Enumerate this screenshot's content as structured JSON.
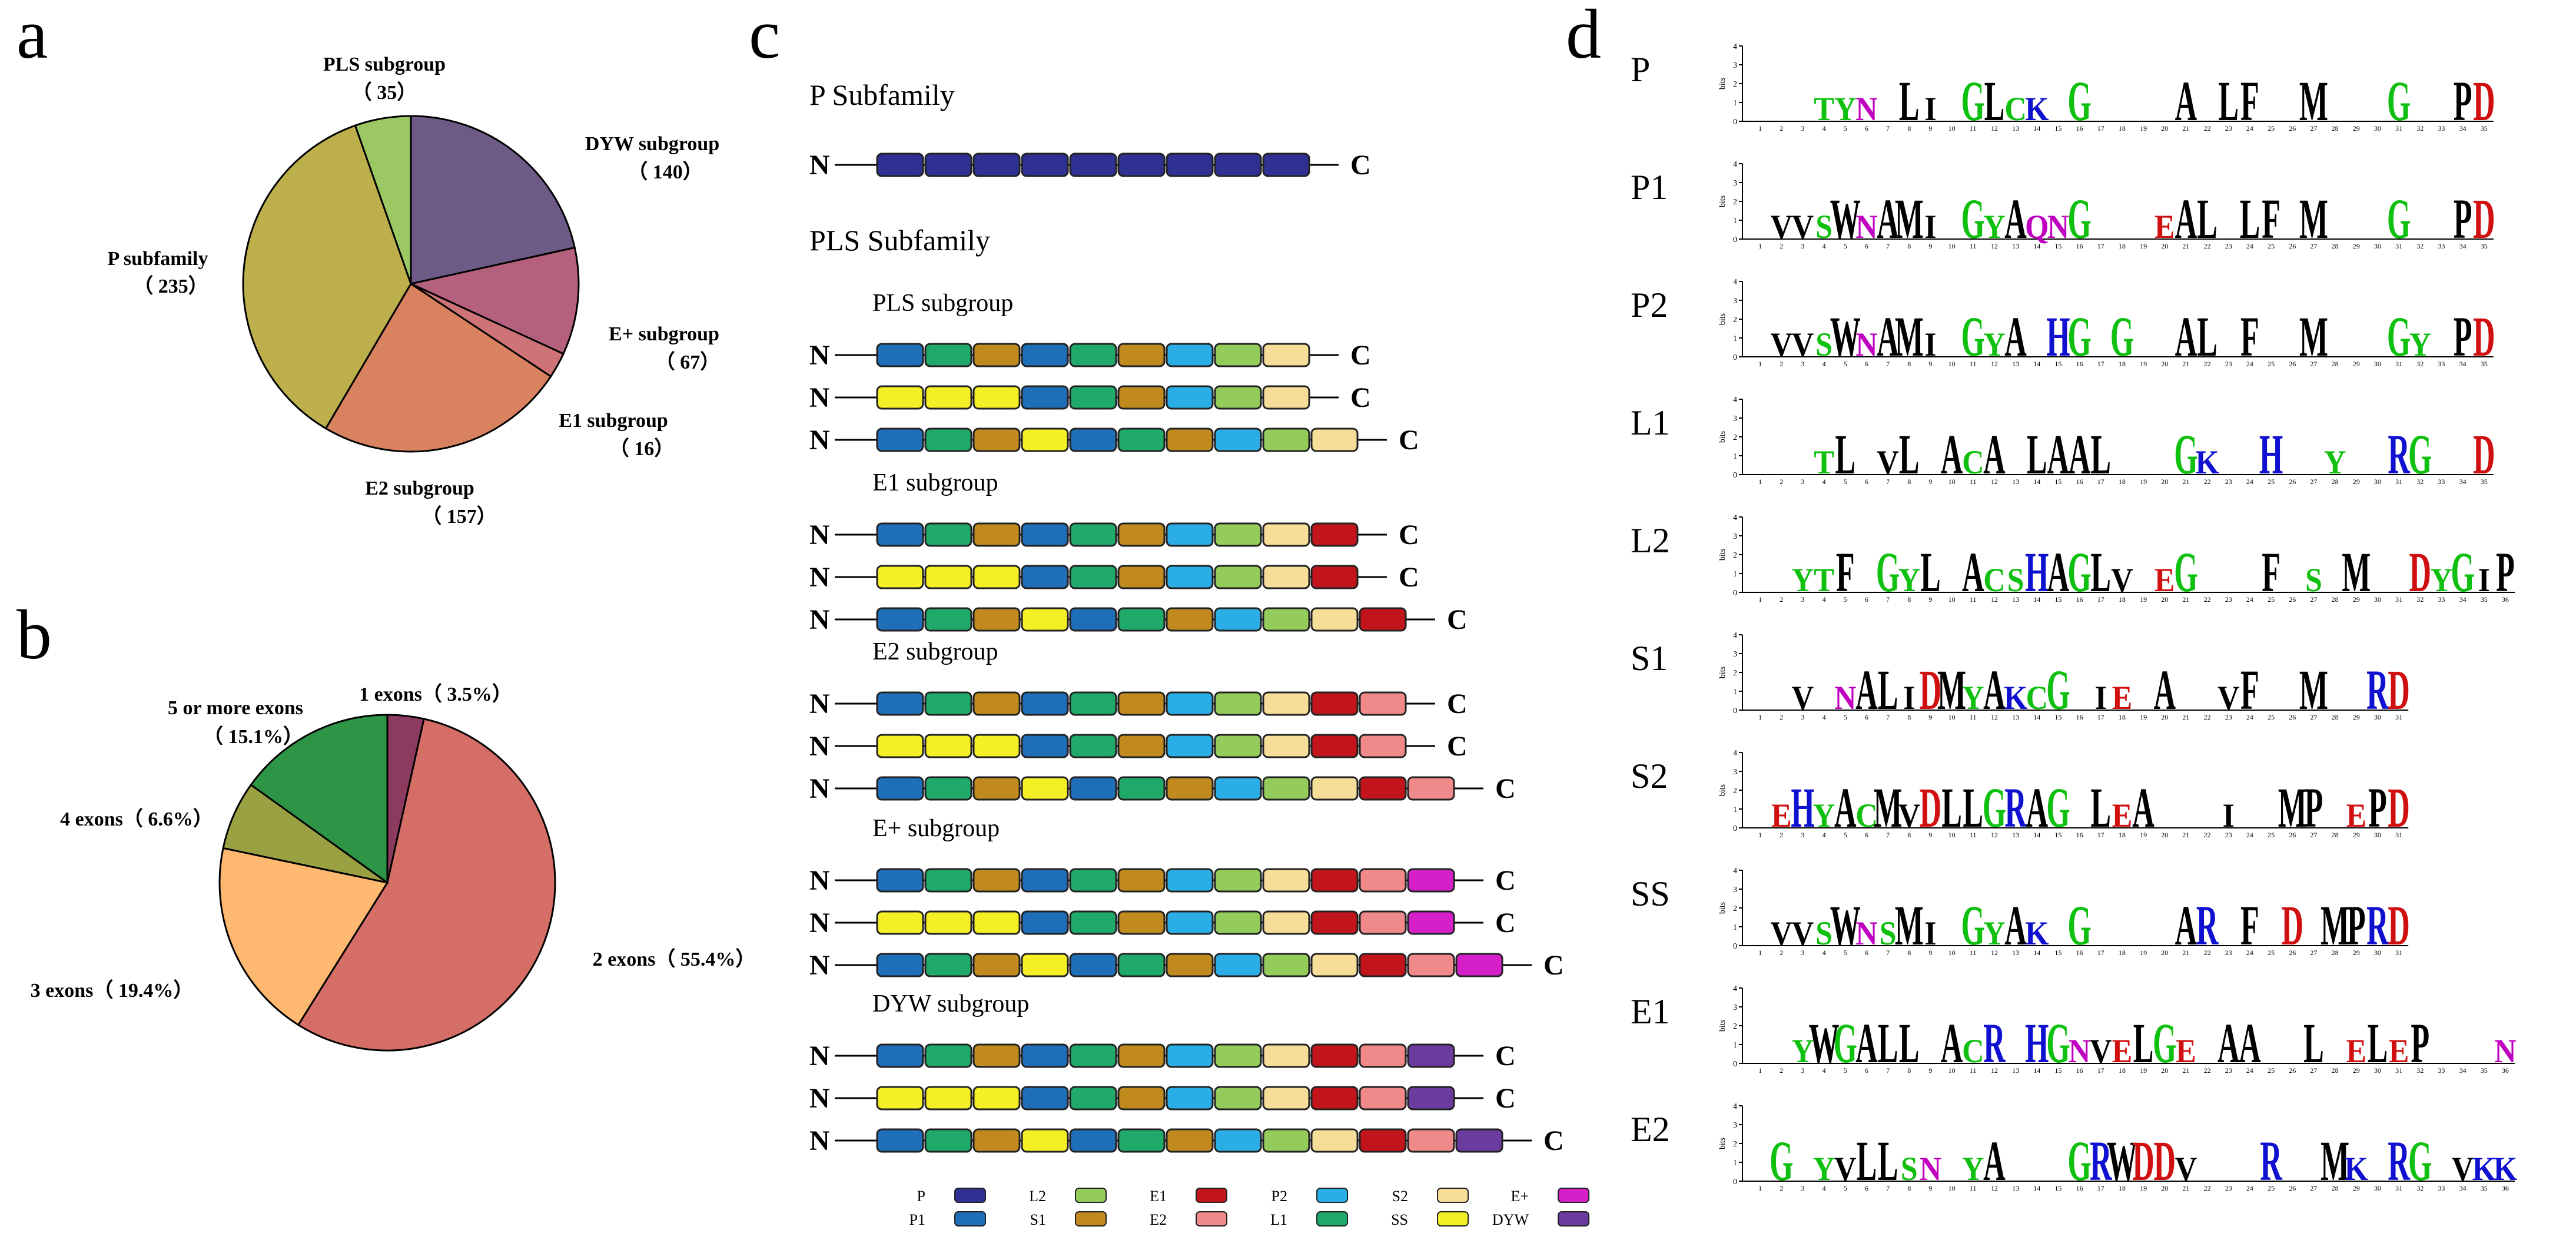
{
  "panels": {
    "a": "a",
    "b": "b",
    "c": "c",
    "d": "d"
  },
  "colors": {
    "P": "#2E3192",
    "P1": "#1F6FB8",
    "P2": "#2BAEE6",
    "L1": "#1FAA6A",
    "L2": "#93CC5A",
    "S1": "#C08A1E",
    "S2": "#F7DE98",
    "SS": "#F5EF26",
    "E1": "#C1141B",
    "E2": "#F08A8A",
    "E+": "#D51FC9",
    "DYW": "#6B3BA0"
  },
  "chart_data": [
    {
      "type": "pie",
      "panel": "a",
      "slices": [
        {
          "name": "DYW subgroup",
          "value": 140,
          "value_label": "（ 140）",
          "color": "#6E5A86"
        },
        {
          "name": "E+ subgroup",
          "value": 67,
          "value_label": "（ 67）",
          "color": "#B5607C"
        },
        {
          "name": "E1 subgroup",
          "value": 16,
          "value_label": "（ 16）",
          "color": "#CE7478"
        },
        {
          "name": "E2 subgroup",
          "value": 157,
          "value_label": "（ 157）",
          "color": "#D9825F"
        },
        {
          "name": "P subfamily",
          "value": 235,
          "value_label": "（ 235）",
          "color": "#BDB04C"
        },
        {
          "name": "PLS subgroup",
          "value": 35,
          "value_label": "（ 35）",
          "color": "#9BC863"
        }
      ]
    },
    {
      "type": "pie",
      "panel": "b",
      "slices": [
        {
          "name": "1 exons",
          "value": 3.5,
          "label": "1 exons（ 3.5%）",
          "color": "#8C3A5E"
        },
        {
          "name": "2 exons",
          "value": 55.4,
          "label": "2 exons（ 55.4%）",
          "color": "#D56E66"
        },
        {
          "name": "3 exons",
          "value": 19.4,
          "label": "3 exons（ 19.4%）",
          "color": "#FFB870"
        },
        {
          "name": "4 exons",
          "value": 6.6,
          "label": "4 exons（ 6.6%）",
          "color": "#9AA143"
        },
        {
          "name": "5 or more exons",
          "value": 15.1,
          "label": "5 or more exons",
          "label2": "（ 15.1%）",
          "color": "#2E9446"
        }
      ]
    },
    {
      "type": "diagram",
      "panel": "c",
      "p_title": "P Subfamily",
      "pls_title": "PLS Subfamily",
      "n_label": "N",
      "c_label": "C",
      "p_row": [
        "P",
        "P",
        "P",
        "P",
        "P",
        "P",
        "P",
        "P",
        "P"
      ],
      "groups": [
        {
          "name": "PLS subgroup",
          "rows": [
            [
              "P1",
              "L1",
              "S1",
              "P1",
              "L1",
              "S1",
              "P2",
              "L2",
              "S2"
            ],
            [
              "SS",
              "SS",
              "SS",
              "P1",
              "L1",
              "S1",
              "P2",
              "L2",
              "S2"
            ],
            [
              "P1",
              "L1",
              "S1",
              "SS",
              "P1",
              "L1",
              "S1",
              "P2",
              "L2",
              "S2"
            ]
          ]
        },
        {
          "name": "E1 subgroup",
          "rows": [
            [
              "P1",
              "L1",
              "S1",
              "P1",
              "L1",
              "S1",
              "P2",
              "L2",
              "S2",
              "E1"
            ],
            [
              "SS",
              "SS",
              "SS",
              "P1",
              "L1",
              "S1",
              "P2",
              "L2",
              "S2",
              "E1"
            ],
            [
              "P1",
              "L1",
              "S1",
              "SS",
              "P1",
              "L1",
              "S1",
              "P2",
              "L2",
              "S2",
              "E1"
            ]
          ]
        },
        {
          "name": "E2 subgroup",
          "rows": [
            [
              "P1",
              "L1",
              "S1",
              "P1",
              "L1",
              "S1",
              "P2",
              "L2",
              "S2",
              "E1",
              "E2"
            ],
            [
              "SS",
              "SS",
              "SS",
              "P1",
              "L1",
              "S1",
              "P2",
              "L2",
              "S2",
              "E1",
              "E2"
            ],
            [
              "P1",
              "L1",
              "S1",
              "SS",
              "P1",
              "L1",
              "S1",
              "P2",
              "L2",
              "S2",
              "E1",
              "E2"
            ]
          ]
        },
        {
          "name": "E+ subgroup",
          "rows": [
            [
              "P1",
              "L1",
              "S1",
              "P1",
              "L1",
              "S1",
              "P2",
              "L2",
              "S2",
              "E1",
              "E2",
              "E+"
            ],
            [
              "SS",
              "SS",
              "SS",
              "P1",
              "L1",
              "S1",
              "P2",
              "L2",
              "S2",
              "E1",
              "E2",
              "E+"
            ],
            [
              "P1",
              "L1",
              "S1",
              "SS",
              "P1",
              "L1",
              "S1",
              "P2",
              "L2",
              "S2",
              "E1",
              "E2",
              "E+"
            ]
          ]
        },
        {
          "name": "DYW subgroup",
          "rows": [
            [
              "P1",
              "L1",
              "S1",
              "P1",
              "L1",
              "S1",
              "P2",
              "L2",
              "S2",
              "E1",
              "E2",
              "DYW"
            ],
            [
              "SS",
              "SS",
              "SS",
              "P1",
              "L1",
              "S1",
              "P2",
              "L2",
              "S2",
              "E1",
              "E2",
              "DYW"
            ],
            [
              "P1",
              "L1",
              "S1",
              "SS",
              "P1",
              "L1",
              "S1",
              "P2",
              "L2",
              "S2",
              "E1",
              "E2",
              "DYW"
            ]
          ]
        }
      ],
      "legend": [
        [
          "P",
          "L2",
          "E1",
          "P2",
          "S2",
          "E+"
        ],
        [
          "P1",
          "S1",
          "E2",
          "L1",
          "SS",
          "DYW"
        ]
      ]
    },
    {
      "type": "sequence-logo",
      "panel": "d",
      "y_axis_label": "bits",
      "y_ticks": [
        "0",
        "1",
        "2",
        "3",
        "4"
      ],
      "motifs": [
        {
          "name": "P",
          "length": 35,
          "consensus": [
            "",
            "",
            "",
            "T",
            "Y",
            "N",
            "",
            "L",
            "I",
            "",
            "G",
            "L",
            "C",
            "K",
            "",
            "G",
            "",
            "",
            "",
            "",
            "A",
            "",
            "L",
            "F",
            "",
            "",
            "M",
            "",
            "",
            "",
            "G",
            "",
            "",
            "P",
            "D"
          ]
        },
        {
          "name": "P1",
          "length": 35,
          "consensus": [
            "",
            "V",
            "V",
            "S",
            "W",
            "N",
            "A",
            "M",
            "I",
            "",
            "G",
            "Y",
            "A",
            "Q",
            "N",
            "G",
            "",
            "",
            "",
            "E",
            "A",
            "L",
            "",
            "L",
            "F",
            "",
            "M",
            "",
            "",
            "",
            "G",
            "",
            "",
            "P",
            "D"
          ]
        },
        {
          "name": "P2",
          "length": 35,
          "consensus": [
            "",
            "V",
            "V",
            "S",
            "W",
            "N",
            "A",
            "M",
            "I",
            "",
            "G",
            "Y",
            "A",
            "",
            "H",
            "G",
            "",
            "G",
            "",
            "",
            "A",
            "L",
            "",
            "F",
            "",
            "",
            "M",
            "",
            "",
            "",
            "G",
            "Y",
            "",
            "P",
            "D"
          ]
        },
        {
          "name": "L1",
          "length": 35,
          "consensus": [
            "",
            "",
            "",
            "T",
            "L",
            "",
            "V",
            "L",
            "",
            "A",
            "C",
            "A",
            "",
            "L",
            "A",
            "A",
            "L",
            "",
            "",
            "",
            "G",
            "K",
            "",
            "",
            "H",
            "",
            "",
            "Y",
            "",
            "",
            "R",
            "G",
            "",
            "",
            "D"
          ]
        },
        {
          "name": "L2",
          "length": 36,
          "consensus": [
            "",
            "",
            "Y",
            "T",
            "F",
            "",
            "G",
            "Y",
            "L",
            "",
            "A",
            "C",
            "S",
            "H",
            "A",
            "G",
            "L",
            "V",
            "",
            "E",
            "G",
            "",
            "",
            "",
            "F",
            "",
            "S",
            "",
            "M",
            "",
            "",
            "D",
            "Y",
            "G",
            "I",
            "P"
          ]
        },
        {
          "name": "S1",
          "length": 31,
          "consensus": [
            "",
            "",
            "V",
            "",
            "N",
            "A",
            "L",
            "I",
            "D",
            "M",
            "Y",
            "A",
            "K",
            "C",
            "G",
            "",
            "I",
            "E",
            "",
            "A",
            "",
            "",
            "V",
            "F",
            "",
            "",
            "M",
            "",
            "",
            "R",
            "D"
          ]
        },
        {
          "name": "S2",
          "length": 31,
          "consensus": [
            "",
            "E",
            "H",
            "Y",
            "A",
            "C",
            "M",
            "V",
            "D",
            "L",
            "L",
            "G",
            "R",
            "A",
            "G",
            "",
            "L",
            "E",
            "A",
            "",
            "",
            "",
            "I",
            "",
            "",
            "M",
            "P",
            "",
            "E",
            "P",
            "D"
          ]
        },
        {
          "name": "SS",
          "length": 31,
          "consensus": [
            "",
            "V",
            "V",
            "S",
            "W",
            "N",
            "S",
            "M",
            "I",
            "",
            "G",
            "Y",
            "A",
            "K",
            "",
            "G",
            "",
            "",
            "",
            "",
            "A",
            "R",
            "",
            "F",
            "",
            "D",
            "",
            "M",
            "P",
            "R",
            "D"
          ]
        },
        {
          "name": "E1",
          "length": 36,
          "consensus": [
            "",
            "",
            "Y",
            "W",
            "G",
            "A",
            "L",
            "L",
            "",
            "A",
            "C",
            "R",
            "",
            "H",
            "G",
            "N",
            "V",
            "E",
            "L",
            "G",
            "E",
            "",
            "A",
            "A",
            "",
            "",
            "L",
            "",
            "E",
            "L",
            "E",
            "P",
            "",
            "",
            "",
            "N"
          ]
        },
        {
          "name": "E2",
          "length": 36,
          "consensus": [
            "",
            "G",
            "",
            "Y",
            "V",
            "L",
            "L",
            "S",
            "N",
            "",
            "Y",
            "A",
            "",
            "",
            "",
            "G",
            "R",
            "W",
            "D",
            "D",
            "V",
            "",
            "",
            "",
            "R",
            "",
            "",
            "M",
            "K",
            "",
            "R",
            "G",
            "",
            "V",
            "K",
            "K"
          ]
        }
      ]
    }
  ],
  "panel_a_labels": {
    "pls": "PLS subgroup",
    "dyw": "DYW subgroup",
    "eplus": "E+ subgroup",
    "e1": "E1 subgroup",
    "e2": "E2 subgroup",
    "p": "P subfamily"
  }
}
